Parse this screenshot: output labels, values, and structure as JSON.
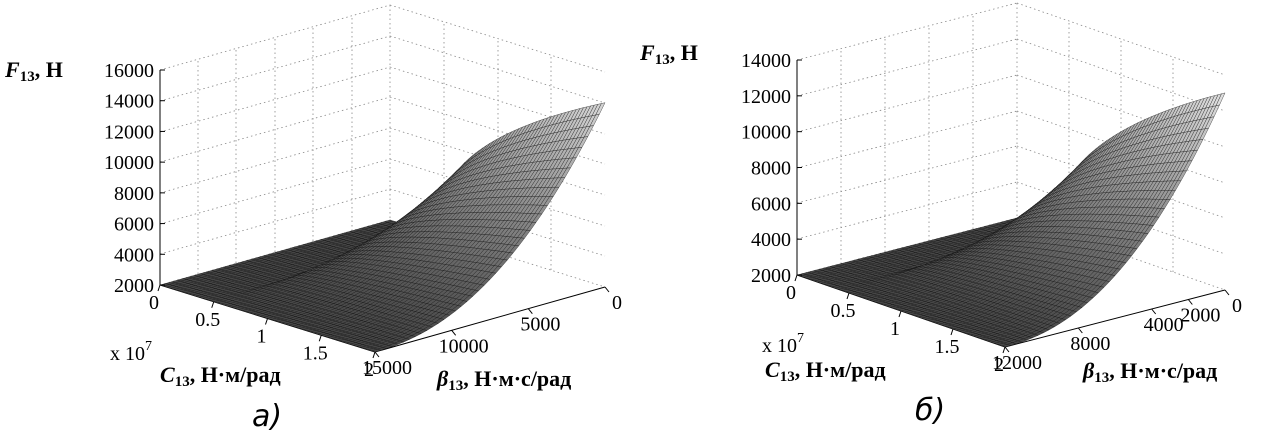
{
  "chart_data": [
    {
      "type": "surface",
      "caption": "а)",
      "zlabel": {
        "main": "F",
        "sub": "13",
        "unit": ", Н"
      },
      "ylabel": {
        "main": "C",
        "sub": "13",
        "unit": ", Н·м/рад"
      },
      "xlabel": {
        "main": "β",
        "sub": "13",
        "unit": ", Н·м·с/рад"
      },
      "multiplier": {
        "base": "x 10",
        "exp": "7"
      },
      "z_ticks": [
        "2000",
        "4000",
        "6000",
        "8000",
        "10000",
        "12000",
        "14000",
        "16000"
      ],
      "z_range": [
        2000,
        16000
      ],
      "c_ticks": [
        "0",
        "0.5",
        "1",
        "1.5",
        "2"
      ],
      "c_range": [
        0,
        2
      ],
      "beta_ticks": [
        "15000",
        "10000",
        "5000",
        "0"
      ],
      "beta_range": [
        0,
        15000
      ],
      "surface": {
        "z_flat": 2000,
        "c_step": 0.5,
        "z_at_step": 4000,
        "z_max": 14000
      }
    },
    {
      "type": "surface",
      "caption": "б)",
      "zlabel": {
        "main": "F",
        "sub": "13",
        "unit": ", Н"
      },
      "ylabel": {
        "main": "C",
        "sub": "13",
        "unit": ", Н·м/рад"
      },
      "xlabel": {
        "main": "β",
        "sub": "13",
        "unit": ", Н·м·с/рад"
      },
      "multiplier": {
        "base": "x 10",
        "exp": "7"
      },
      "z_ticks": [
        "2000",
        "4000",
        "6000",
        "8000",
        "10000",
        "12000",
        "14000"
      ],
      "z_range": [
        2000,
        14000
      ],
      "c_ticks": [
        "0",
        "0.5",
        "1",
        "1.5",
        "2"
      ],
      "c_range": [
        0,
        2
      ],
      "beta_ticks": [
        "12000",
        "8000",
        "4000",
        "2000",
        "0"
      ],
      "beta_range": [
        0,
        12000
      ],
      "surface": {
        "z_flat": 2000,
        "c_step": 0.4,
        "z_at_step": 3000,
        "z_max": 13000
      }
    }
  ]
}
